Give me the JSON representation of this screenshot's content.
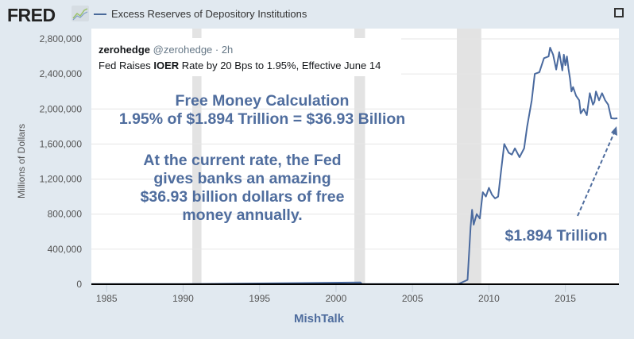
{
  "header": {
    "logo": "FRED",
    "series_title": "Excess Reserves of Depository Institutions",
    "fullscreen_icon": "fullscreen-icon"
  },
  "tweet": {
    "name": "zerohedge",
    "handle": "@zerohedge · 2h",
    "body_pre": "Fed Raises ",
    "body_bold": "IOER",
    "body_post": " Rate by 20 Bps to 1.95%, Effective June 14"
  },
  "annotations": {
    "calc_title": "Free Money Calculation",
    "calc_formula": "1.95% of $1.894 Trillion = $36.93 Billion",
    "explain_lines": [
      "At the current rate, the Fed",
      "gives banks an amazing",
      "$36.93 billion dollars of free",
      "money annually."
    ],
    "arrow_label": "$1.894 Trillion"
  },
  "credit": "MishTalk",
  "colors": {
    "line": "#4a6a9f",
    "annotation": "#4f6d9e",
    "recession": "#e3e3e3",
    "background": "#e1e9f0"
  },
  "chart_data": {
    "type": "line",
    "title": "Excess Reserves of Depository Institutions",
    "ylabel": "Millions of Dollars",
    "xlabel": "",
    "xlim": [
      1984,
      2018.5
    ],
    "ylim": [
      0,
      2800000
    ],
    "x_ticks": [
      1985,
      1990,
      1995,
      2000,
      2005,
      2010,
      2015
    ],
    "x_tick_labels": [
      "1985",
      "1990",
      "1995",
      "2000",
      "2005",
      "2010",
      "2015"
    ],
    "y_ticks": [
      0,
      400000,
      800000,
      1200000,
      1600000,
      2000000,
      2400000,
      2800000
    ],
    "y_tick_labels": [
      "0",
      "400,000",
      "800,000",
      "1,200,000",
      "1,600,000",
      "2,000,000",
      "2,400,000",
      "2,800,000"
    ],
    "grid": true,
    "recessions": [
      [
        1990.6,
        1991.2
      ],
      [
        2001.2,
        2001.9
      ],
      [
        2007.9,
        2009.5
      ]
    ],
    "series": [
      {
        "name": "Excess Reserves of Depository Institutions",
        "x": [
          1984,
          1990,
          2001.6,
          2001.7,
          2001.8,
          2008.0,
          2008.6,
          2008.8,
          2008.9,
          2009.0,
          2009.2,
          2009.4,
          2009.6,
          2009.8,
          2010.0,
          2010.2,
          2010.4,
          2010.6,
          2010.8,
          2011.0,
          2011.3,
          2011.5,
          2011.7,
          2012.0,
          2012.3,
          2012.5,
          2012.8,
          2013.0,
          2013.3,
          2013.6,
          2013.9,
          2014.0,
          2014.2,
          2014.4,
          2014.6,
          2014.8,
          2014.9,
          2015.0,
          2015.1,
          2015.2,
          2015.3,
          2015.4,
          2015.5,
          2015.7,
          2015.9,
          2016.0,
          2016.2,
          2016.4,
          2016.6,
          2016.8,
          2016.9,
          2017.0,
          2017.2,
          2017.4,
          2017.6,
          2017.8,
          2018.0,
          2018.2,
          2018.4
        ],
        "values": [
          1500,
          1500,
          20000,
          2000,
          1500,
          2000,
          50000,
          650000,
          850000,
          680000,
          800000,
          750000,
          1050000,
          1000000,
          1100000,
          1020000,
          980000,
          1000000,
          1300000,
          1600000,
          1500000,
          1480000,
          1550000,
          1450000,
          1550000,
          1800000,
          2100000,
          2400000,
          2420000,
          2580000,
          2600000,
          2700000,
          2620000,
          2450000,
          2650000,
          2440000,
          2620000,
          2500000,
          2600000,
          2460000,
          2350000,
          2200000,
          2250000,
          2150000,
          2100000,
          1950000,
          2000000,
          1930000,
          2180000,
          2050000,
          2080000,
          2200000,
          2100000,
          2180000,
          2100000,
          2050000,
          1894000,
          1890000,
          1894000
        ]
      }
    ],
    "annotations": [
      "Free Money Calculation",
      "1.95% of $1.894 Trillion = $36.93 Billion",
      "$1.894 Trillion"
    ]
  }
}
